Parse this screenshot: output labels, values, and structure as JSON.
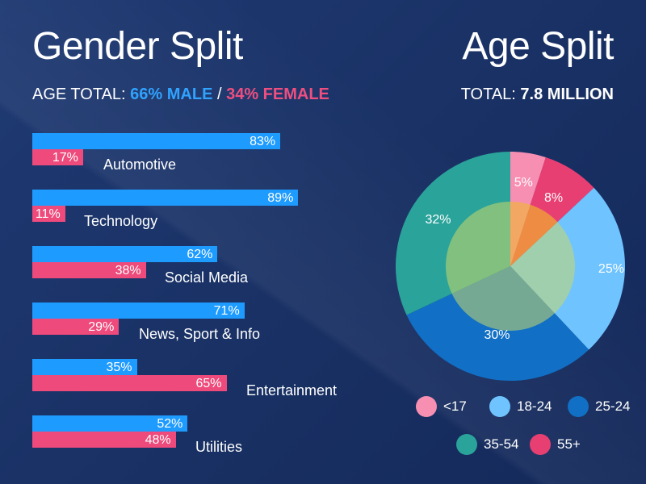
{
  "gender": {
    "title": "Gender Split",
    "subtitle_prefix": "AGE TOTAL: ",
    "male_text": "66% MALE",
    "separator": " / ",
    "female_text": "34% FEMALE"
  },
  "age": {
    "title": "Age Split",
    "subtitle_prefix": "TOTAL: ",
    "total": "7.8 MILLION"
  },
  "colors": {
    "male": "#1e9bff",
    "female": "#ee4a7c",
    "u17": "#f78fb3",
    "a18_24": "#6fc3ff",
    "a25_24": "#1170c5",
    "a35_54": "#2aa39a",
    "a55p": "#e83f73"
  },
  "chart_data": [
    {
      "type": "bar",
      "categories": [
        "Automotive",
        "Technology",
        "Social Media",
        "News, Sport & Info",
        "Entertainment",
        "Utilities"
      ],
      "series": [
        {
          "values": [
            83,
            89,
            62,
            71,
            35,
            52
          ],
          "labels": [
            "83%",
            "89%",
            "62%",
            "71%",
            "35%",
            "52%"
          ]
        },
        {
          "values": [
            17,
            11,
            38,
            29,
            65,
            48
          ],
          "labels": [
            "17%",
            "11%",
            "38%",
            "29%",
            "65%",
            "48%"
          ]
        }
      ],
      "xlim": [
        0,
        100
      ]
    },
    {
      "type": "pie",
      "slices": [
        {
          "name": "<17",
          "value": 5,
          "label": "5%"
        },
        {
          "name": "55+",
          "value": 8,
          "label": "8%"
        },
        {
          "name": "18-24",
          "value": 25,
          "label": "25%"
        },
        {
          "name": "25-24",
          "value": 30,
          "label": "30%"
        },
        {
          "name": "35-54",
          "value": 32,
          "label": "32%"
        }
      ],
      "legend": [
        "<17",
        "18-24",
        "25-24",
        "35-54",
        "55+"
      ],
      "legend_placement": "bottom"
    }
  ]
}
